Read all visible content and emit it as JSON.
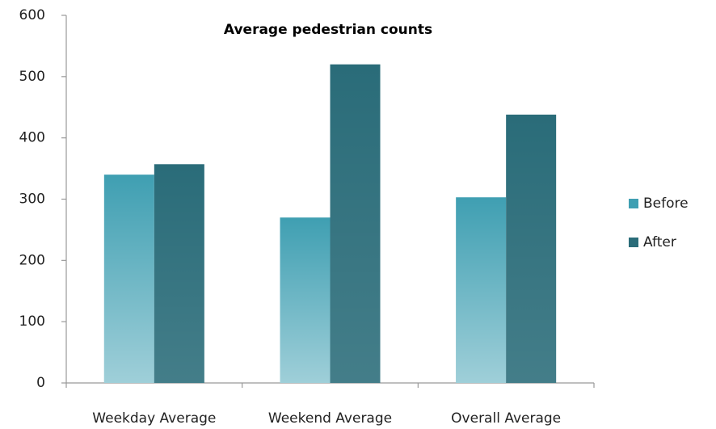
{
  "chart_data": {
    "type": "bar",
    "title": "Average pedestrian counts",
    "categories": [
      "Weekday Average",
      "Weekend Average",
      "Overall Average"
    ],
    "series": [
      {
        "name": "Before",
        "color": "#3f9fb2",
        "values": [
          340,
          270,
          303
        ]
      },
      {
        "name": "After",
        "color": "#2a6c79",
        "values": [
          357,
          520,
          438
        ]
      }
    ],
    "ylim": [
      0,
      600
    ],
    "yticks": [
      0,
      100,
      200,
      300,
      400,
      500,
      600
    ],
    "grid": false,
    "legend": "right"
  }
}
